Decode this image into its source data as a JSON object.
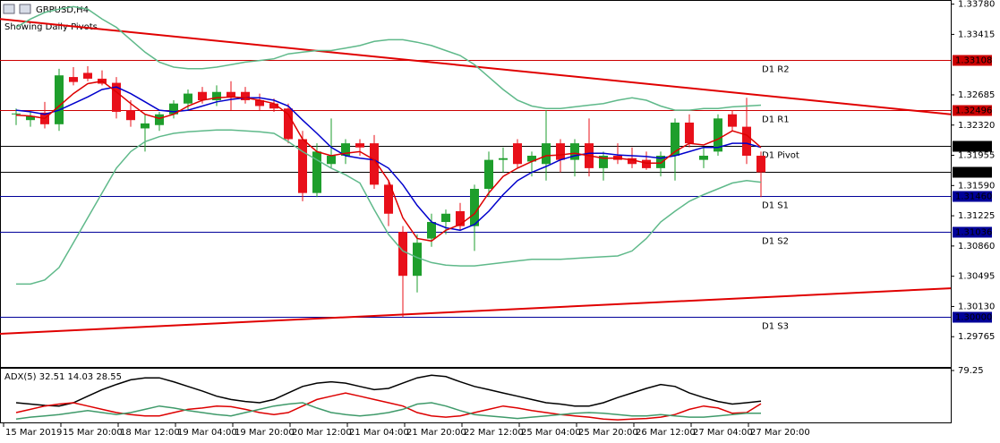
{
  "chart_data": {
    "type": "candlestick",
    "title": "GBPUSD,H4",
    "subtitle": "Showing Daily Pivots.",
    "categories": [
      "15 Mar 2019",
      null,
      null,
      null,
      "15 Mar 20:00",
      null,
      null,
      null,
      "18 Mar 12:00",
      null,
      null,
      null,
      "19 Mar 04:00",
      null,
      null,
      null,
      "19 Mar 20:00",
      null,
      null,
      null,
      "20 Mar 12:00",
      null,
      null,
      null,
      "21 Mar 04:00",
      null,
      null,
      null,
      "21 Mar 20:00",
      null,
      null,
      null,
      "22 Mar 12:00",
      null,
      null,
      null,
      "25 Mar 04:00",
      null,
      null,
      null,
      "25 Mar 20:00",
      null,
      null,
      null,
      "26 Mar 12:00",
      null,
      null,
      null,
      "27 Mar 04:00",
      null,
      null,
      null,
      "27 Mar 20:00"
    ],
    "open": [
      1.3245,
      1.3238,
      1.3247,
      1.3233,
      1.329,
      1.3295,
      1.3288,
      1.3283,
      1.325,
      1.3228,
      1.3232,
      1.3245,
      1.3258,
      1.3272,
      1.3262,
      1.3272,
      1.3272,
      1.3262,
      1.3258,
      1.3252,
      1.3215,
      1.315,
      1.3185,
      1.3195,
      1.321,
      1.321,
      1.316,
      1.3103,
      1.305,
      1.3095,
      1.3115,
      1.3128,
      1.311,
      1.3155,
      1.319,
      1.321,
      1.3188,
      1.3185,
      1.321,
      1.319,
      1.321,
      1.318,
      1.3195,
      1.3192,
      1.319,
      1.318,
      1.3195,
      1.3235,
      1.319,
      1.32,
      1.3245,
      1.323,
      1.3195
    ],
    "high": [
      1.3252,
      1.3248,
      1.326,
      1.33,
      1.3302,
      1.3303,
      1.3298,
      1.329,
      1.3262,
      1.3245,
      1.3248,
      1.3262,
      1.3275,
      1.3278,
      1.328,
      1.3285,
      1.3278,
      1.327,
      1.3264,
      1.3258,
      1.3225,
      1.321,
      1.324,
      1.3215,
      1.3215,
      1.322,
      1.3165,
      1.311,
      1.31,
      1.3125,
      1.313,
      1.3138,
      1.316,
      1.32,
      1.3205,
      1.3215,
      1.32,
      1.325,
      1.3215,
      1.3215,
      1.324,
      1.32,
      1.321,
      1.3205,
      1.32,
      1.32,
      1.324,
      1.3245,
      1.3205,
      1.3245,
      1.325,
      1.3265,
      1.32
    ],
    "low": [
      1.3232,
      1.323,
      1.3228,
      1.3225,
      1.328,
      1.3285,
      1.328,
      1.324,
      1.323,
      1.32,
      1.3225,
      1.324,
      1.325,
      1.3258,
      1.3255,
      1.325,
      1.3258,
      1.325,
      1.3248,
      1.321,
      1.314,
      1.3145,
      1.318,
      1.3185,
      1.3195,
      1.3155,
      1.311,
      1.3,
      1.303,
      1.3085,
      1.31,
      1.3105,
      1.308,
      1.3145,
      1.3175,
      1.318,
      1.317,
      1.3165,
      1.3175,
      1.317,
      1.317,
      1.3165,
      1.3185,
      1.318,
      1.3178,
      1.317,
      1.3165,
      1.3205,
      1.318,
      1.3195,
      1.3225,
      1.3185,
      1.3145
    ],
    "close": [
      1.3246,
      1.3243,
      1.3233,
      1.3292,
      1.3284,
      1.3288,
      1.3282,
      1.3248,
      1.3238,
      1.3234,
      1.3245,
      1.3258,
      1.327,
      1.3262,
      1.3272,
      1.3265,
      1.3262,
      1.3255,
      1.3252,
      1.3215,
      1.315,
      1.32,
      1.3195,
      1.321,
      1.3205,
      1.316,
      1.3125,
      1.305,
      1.309,
      1.3115,
      1.3125,
      1.311,
      1.3155,
      1.319,
      1.3192,
      1.3185,
      1.3195,
      1.321,
      1.319,
      1.321,
      1.318,
      1.3195,
      1.319,
      1.3185,
      1.318,
      1.3195,
      1.3235,
      1.321,
      1.3195,
      1.324,
      1.323,
      1.3195,
      1.3175
    ],
    "series": [
      {
        "color": "#5fb98a",
        "values": [
          1.335,
          1.336,
          1.3368,
          1.3372,
          1.3375,
          1.3372,
          1.336,
          1.335,
          1.3335,
          1.332,
          1.3308,
          1.3302,
          1.33,
          1.33,
          1.3302,
          1.3305,
          1.3308,
          1.331,
          1.3312,
          1.3318,
          1.332,
          1.3322,
          1.3322,
          1.3325,
          1.3328,
          1.3333,
          1.3335,
          1.3335,
          1.3332,
          1.3328,
          1.3322,
          1.3316,
          1.3305,
          1.329,
          1.3275,
          1.3262,
          1.3255,
          1.3252,
          1.3252,
          1.3254,
          1.3256,
          1.3258,
          1.3262,
          1.3265,
          1.3262,
          1.3255,
          1.325,
          1.325,
          1.3252,
          1.3252,
          1.3254,
          1.3255,
          1.3256
        ]
      },
      {
        "color": "#5fb98a",
        "values": [
          1.304,
          1.304,
          1.3045,
          1.306,
          1.309,
          1.312,
          1.315,
          1.318,
          1.32,
          1.3212,
          1.3218,
          1.3222,
          1.3224,
          1.3225,
          1.3226,
          1.3226,
          1.3225,
          1.3224,
          1.3222,
          1.3212,
          1.32,
          1.319,
          1.318,
          1.3172,
          1.3162,
          1.313,
          1.31,
          1.308,
          1.3072,
          1.3066,
          1.3063,
          1.3062,
          1.3062,
          1.3064,
          1.3066,
          1.3068,
          1.307,
          1.307,
          1.307,
          1.3071,
          1.3072,
          1.3073,
          1.3074,
          1.308,
          1.3095,
          1.3115,
          1.3128,
          1.314,
          1.3148,
          1.3155,
          1.3162,
          1.3165,
          1.3163
        ]
      },
      {
        "color": "#0000cc",
        "values": [
          1.325,
          1.3248,
          1.3245,
          1.325,
          1.3258,
          1.3266,
          1.3275,
          1.3278,
          1.327,
          1.326,
          1.325,
          1.3248,
          1.325,
          1.3255,
          1.326,
          1.3263,
          1.3265,
          1.3265,
          1.3262,
          1.3255,
          1.3238,
          1.3222,
          1.3205,
          1.3195,
          1.3192,
          1.319,
          1.318,
          1.316,
          1.3135,
          1.3115,
          1.3108,
          1.3105,
          1.3112,
          1.3128,
          1.3148,
          1.3165,
          1.3175,
          1.3182,
          1.319,
          1.3195,
          1.3198,
          1.3198,
          1.3196,
          1.3195,
          1.3194,
          1.3192,
          1.3195,
          1.32,
          1.3205,
          1.3205,
          1.321,
          1.321,
          1.3205
        ]
      },
      {
        "color": "#dd0000",
        "values": [
          1.3244,
          1.3243,
          1.324,
          1.3255,
          1.327,
          1.3282,
          1.3285,
          1.3272,
          1.3258,
          1.3245,
          1.324,
          1.3245,
          1.3255,
          1.3262,
          1.3265,
          1.3266,
          1.3265,
          1.3262,
          1.3258,
          1.3245,
          1.3215,
          1.32,
          1.3195,
          1.3198,
          1.32,
          1.319,
          1.3165,
          1.312,
          1.3095,
          1.3092,
          1.3105,
          1.3112,
          1.3125,
          1.315,
          1.317,
          1.318,
          1.3188,
          1.3195,
          1.3196,
          1.3198,
          1.3195,
          1.3192,
          1.3192,
          1.319,
          1.3186,
          1.3186,
          1.32,
          1.321,
          1.3208,
          1.3215,
          1.3225,
          1.322,
          1.3205
        ]
      }
    ],
    "trendlines": [
      {
        "color": "#e00000",
        "values": [
          1.336,
          1.3245
        ]
      },
      {
        "color": "#e00000",
        "values": [
          1.298,
          1.3035
        ]
      }
    ],
    "levels": [
      {
        "name": "D1 R2",
        "value": 1.33108,
        "label": "1.33108",
        "color": "#cc0000"
      },
      {
        "name": "D1 R1",
        "value": 1.32496,
        "label": "1.32496",
        "color": "#cc0000"
      },
      {
        "name": "D1 Pivot",
        "value": 1.32072,
        "label": "1.32072",
        "color": "#000000"
      },
      {
        "value": 1.31752,
        "label": "1.31752",
        "color": "#000000"
      },
      {
        "name": "D1 S1",
        "value": 1.3146,
        "label": "1.31460",
        "color": "#000099"
      },
      {
        "name": "D1 S2",
        "value": 1.31036,
        "label": "1.31036",
        "color": "#000099"
      },
      {
        "name": "D1 S3",
        "value": 1.3,
        "label": "1.30000",
        "color": "#000099"
      }
    ],
    "ylim": [
      1.294,
      1.3383
    ],
    "yticks": [
      {
        "value": 1.3378,
        "label": "1.33780"
      },
      {
        "value": 1.33415,
        "label": "1.33415"
      },
      {
        "value": 1.32685,
        "label": "1.32685"
      },
      {
        "value": 1.3232,
        "label": "1.32320"
      },
      {
        "value": 1.31955,
        "label": "1.31955"
      },
      {
        "value": 1.3159,
        "label": "1.31590"
      },
      {
        "value": 1.31225,
        "label": "1.31225"
      },
      {
        "value": 1.3086,
        "label": "1.30860"
      },
      {
        "value": 1.30495,
        "label": "1.30495"
      },
      {
        "value": 1.3013,
        "label": "1.30130"
      },
      {
        "value": 1.29765,
        "label": "1.29765"
      }
    ],
    "bull_color": "#1e9e2c",
    "bear_color": "#e8101a",
    "indicator": {
      "title": "ADX(5) 32.51 14.03 28.55",
      "ylim": [
        0,
        82
      ],
      "yticks": [
        79.25
      ],
      "series": [
        {
          "color": "#000000",
          "values": [
            30,
            28,
            26,
            25,
            30,
            40,
            50,
            58,
            65,
            68,
            68,
            62,
            55,
            48,
            40,
            35,
            32,
            30,
            35,
            45,
            55,
            60,
            62,
            60,
            55,
            50,
            52,
            60,
            68,
            72,
            70,
            62,
            55,
            50,
            45,
            40,
            35,
            30,
            28,
            25,
            25,
            30,
            38,
            45,
            52,
            58,
            55,
            45,
            38,
            32,
            28,
            30,
            32.51
          ]
        },
        {
          "color": "#dd0000",
          "values": [
            15,
            20,
            25,
            28,
            30,
            25,
            20,
            15,
            12,
            10,
            10,
            15,
            20,
            22,
            25,
            24,
            20,
            15,
            12,
            15,
            25,
            35,
            40,
            45,
            40,
            35,
            30,
            25,
            15,
            10,
            8,
            10,
            15,
            20,
            25,
            22,
            18,
            15,
            12,
            10,
            8,
            5,
            4,
            5,
            6,
            8,
            12,
            20,
            25,
            22,
            14,
            15,
            28.55
          ]
        },
        {
          "color": "#3f9a6a",
          "values": [
            5,
            8,
            10,
            12,
            15,
            18,
            15,
            12,
            15,
            20,
            25,
            22,
            18,
            15,
            12,
            10,
            15,
            20,
            25,
            28,
            30,
            22,
            15,
            12,
            10,
            12,
            15,
            20,
            28,
            30,
            25,
            18,
            12,
            10,
            8,
            6,
            8,
            10,
            12,
            14,
            15,
            14,
            12,
            10,
            10,
            12,
            10,
            8,
            8,
            10,
            12,
            14,
            14.03
          ]
        }
      ]
    }
  }
}
